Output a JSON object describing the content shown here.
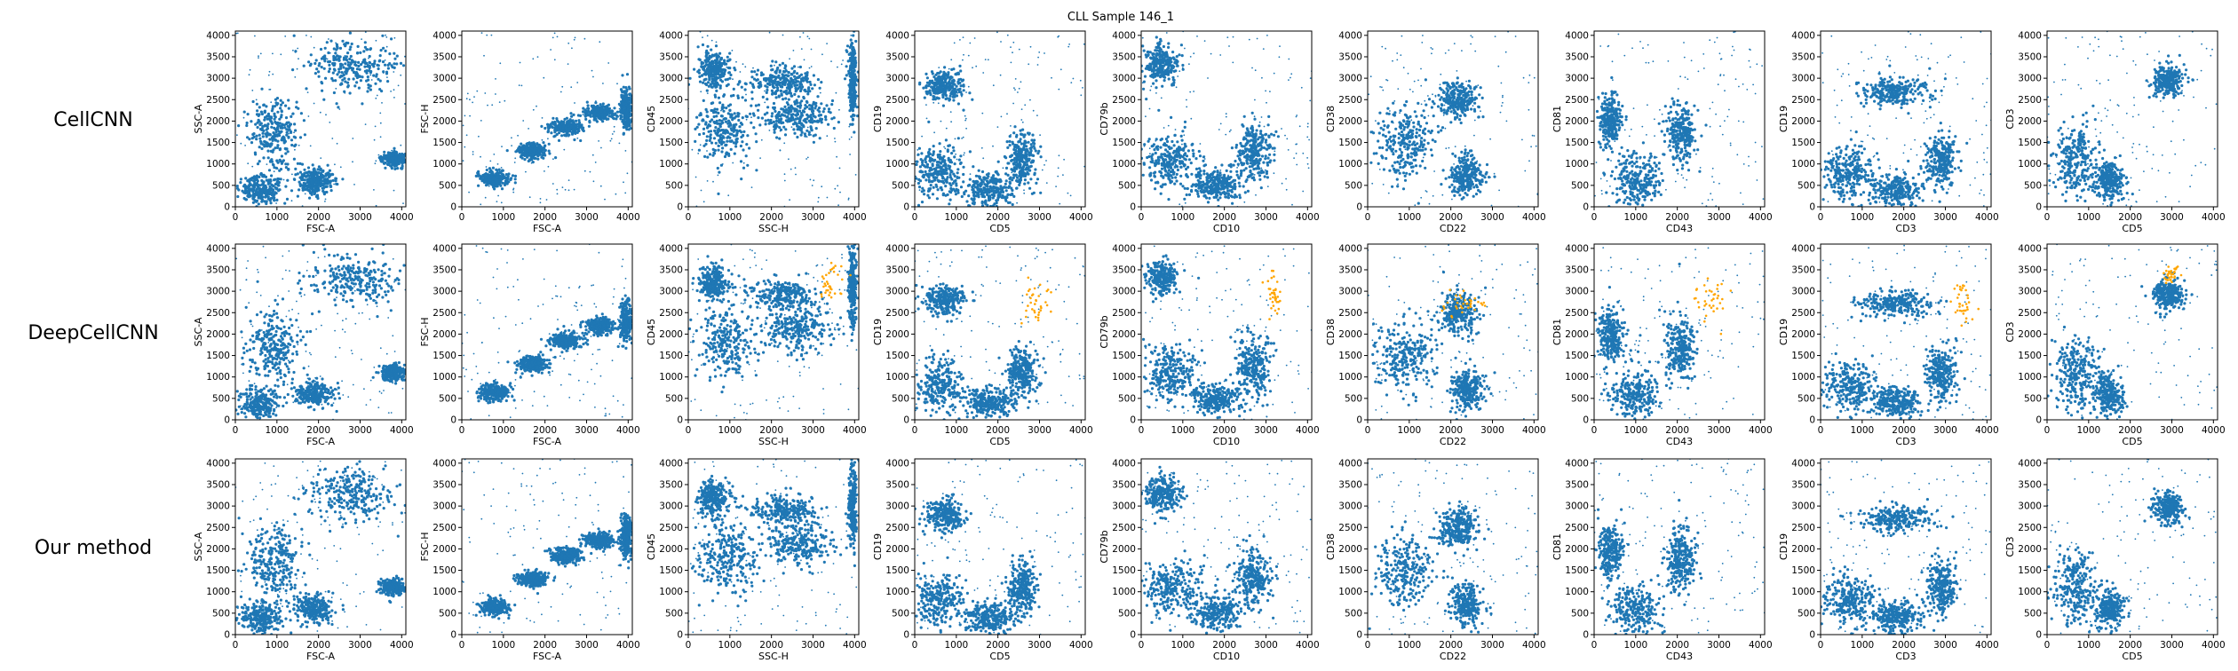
{
  "figure": {
    "title": "CLL Sample 146_1"
  },
  "colors": {
    "inlier": "#1f77b4",
    "highlight": "#ffa500",
    "axis": "#000000",
    "background": "#ffffff"
  },
  "chart_data": {
    "type": "scatter",
    "rows": [
      {
        "label": "CellCNN",
        "highlighted_cells": false
      },
      {
        "label": "DeepCellCNN",
        "highlighted_cells": true
      },
      {
        "label": "Our method",
        "highlighted_cells": false
      }
    ],
    "columns": [
      {
        "xlabel": "FSC-A",
        "ylabel": "SSC-A",
        "xlim": [
          0,
          4100
        ],
        "ylim": [
          0,
          4100
        ],
        "x_ticks": [
          0,
          1000,
          2000,
          3000,
          4000
        ],
        "y_ticks": [
          0,
          500,
          1000,
          1500,
          2000,
          2500,
          3000,
          3500,
          4000
        ],
        "clusters": [
          [
            600,
            400,
            400,
            300
          ],
          [
            1900,
            600,
            400,
            250
          ],
          [
            2800,
            3300,
            900,
            500
          ],
          [
            3800,
            1100,
            250,
            150
          ],
          [
            900,
            1700,
            500,
            700
          ]
        ],
        "highlight_clusters": []
      },
      {
        "xlabel": "FSC-A",
        "ylabel": "FSC-H",
        "xlim": [
          0,
          4100
        ],
        "ylim": [
          0,
          4100
        ],
        "x_ticks": [
          0,
          1000,
          2000,
          3000,
          4000
        ],
        "y_ticks": [
          0,
          500,
          1000,
          1500,
          2000,
          2500,
          3000,
          3500,
          4000
        ],
        "clusters": [
          [
            800,
            650,
            300,
            150
          ],
          [
            1700,
            1300,
            300,
            150
          ],
          [
            2500,
            1850,
            300,
            150
          ],
          [
            3300,
            2200,
            300,
            150
          ],
          [
            3950,
            2300,
            120,
            400
          ]
        ],
        "highlight_clusters": []
      },
      {
        "xlabel": "SSC-H",
        "ylabel": "CD45",
        "xlim": [
          0,
          4100
        ],
        "ylim": [
          0,
          4100
        ],
        "x_ticks": [
          0,
          1000,
          2000,
          3000,
          4000
        ],
        "y_ticks": [
          0,
          500,
          1000,
          1500,
          2000,
          2500,
          3000,
          3500,
          4000
        ],
        "clusters": [
          [
            600,
            3200,
            300,
            350
          ],
          [
            2300,
            2900,
            700,
            300
          ],
          [
            900,
            1800,
            600,
            700
          ],
          [
            2600,
            2100,
            700,
            400
          ],
          [
            3950,
            3000,
            80,
            800
          ]
        ],
        "highlight_clusters": [
          [
            3400,
            3200,
            350,
            500
          ]
        ]
      },
      {
        "xlabel": "CD5",
        "ylabel": "CD19",
        "xlim": [
          0,
          4100
        ],
        "ylim": [
          0,
          4100
        ],
        "x_ticks": [
          0,
          1000,
          2000,
          3000,
          4000
        ],
        "y_ticks": [
          0,
          500,
          1000,
          1500,
          2000,
          2500,
          3000,
          3500,
          4000
        ],
        "clusters": [
          [
            700,
            2800,
            400,
            300
          ],
          [
            600,
            800,
            500,
            500
          ],
          [
            2600,
            1100,
            300,
            500
          ],
          [
            1800,
            400,
            500,
            300
          ]
        ],
        "highlight_clusters": [
          [
            2900,
            2700,
            400,
            600
          ]
        ]
      },
      {
        "xlabel": "CD10",
        "ylabel": "CD79b",
        "xlim": [
          0,
          4100
        ],
        "ylim": [
          0,
          4100
        ],
        "x_ticks": [
          0,
          1000,
          2000,
          3000,
          4000
        ],
        "y_ticks": [
          0,
          500,
          1000,
          1500,
          2000,
          2500,
          3000,
          3500,
          4000
        ],
        "clusters": [
          [
            500,
            3300,
            350,
            350
          ],
          [
            700,
            1100,
            600,
            550
          ],
          [
            2700,
            1300,
            350,
            550
          ],
          [
            1800,
            500,
            500,
            300
          ]
        ],
        "highlight_clusters": [
          [
            3200,
            2900,
            200,
            500
          ]
        ]
      },
      {
        "xlabel": "CD22",
        "ylabel": "CD38",
        "xlim": [
          0,
          4100
        ],
        "ylim": [
          0,
          4100
        ],
        "x_ticks": [
          0,
          1000,
          2000,
          3000,
          4000
        ],
        "y_ticks": [
          0,
          500,
          1000,
          1500,
          2000,
          2500,
          3000,
          3500,
          4000
        ],
        "clusters": [
          [
            900,
            1500,
            600,
            700
          ],
          [
            2400,
            700,
            300,
            400
          ],
          [
            2200,
            2500,
            400,
            400
          ]
        ],
        "highlight_clusters": [
          [
            2300,
            2700,
            500,
            300
          ]
        ]
      },
      {
        "xlabel": "CD43",
        "ylabel": "CD81",
        "xlim": [
          0,
          4100
        ],
        "ylim": [
          0,
          4100
        ],
        "x_ticks": [
          0,
          1000,
          2000,
          3000,
          4000
        ],
        "y_ticks": [
          0,
          500,
          1000,
          1500,
          2000,
          2500,
          3000,
          3500,
          4000
        ],
        "clusters": [
          [
            400,
            2000,
            250,
            500
          ],
          [
            2100,
            1700,
            300,
            600
          ],
          [
            1000,
            600,
            500,
            500
          ]
        ],
        "highlight_clusters": [
          [
            2800,
            2800,
            400,
            500
          ]
        ]
      },
      {
        "xlabel": "CD3",
        "ylabel": "CD19",
        "xlim": [
          0,
          4100
        ],
        "ylim": [
          0,
          4100
        ],
        "x_ticks": [
          0,
          1000,
          2000,
          3000,
          4000
        ],
        "y_ticks": [
          0,
          500,
          1000,
          1500,
          2000,
          2500,
          3000,
          3500,
          4000
        ],
        "clusters": [
          [
            1800,
            2700,
            700,
            250
          ],
          [
            700,
            800,
            500,
            500
          ],
          [
            2900,
            1100,
            300,
            500
          ],
          [
            1800,
            400,
            500,
            300
          ]
        ],
        "highlight_clusters": [
          [
            3400,
            2700,
            250,
            500
          ]
        ]
      },
      {
        "xlabel": "CD5",
        "ylabel": "CD3",
        "xlim": [
          0,
          4100
        ],
        "ylim": [
          0,
          4100
        ],
        "x_ticks": [
          0,
          1000,
          2000,
          3000,
          4000
        ],
        "y_ticks": [
          0,
          500,
          1000,
          1500,
          2000,
          2500,
          3000,
          3500,
          4000
        ],
        "clusters": [
          [
            2900,
            2950,
            300,
            300
          ],
          [
            700,
            1100,
            400,
            700
          ],
          [
            1500,
            600,
            300,
            400
          ]
        ],
        "highlight_clusters": [
          [
            3000,
            3400,
            250,
            200
          ]
        ]
      }
    ]
  }
}
